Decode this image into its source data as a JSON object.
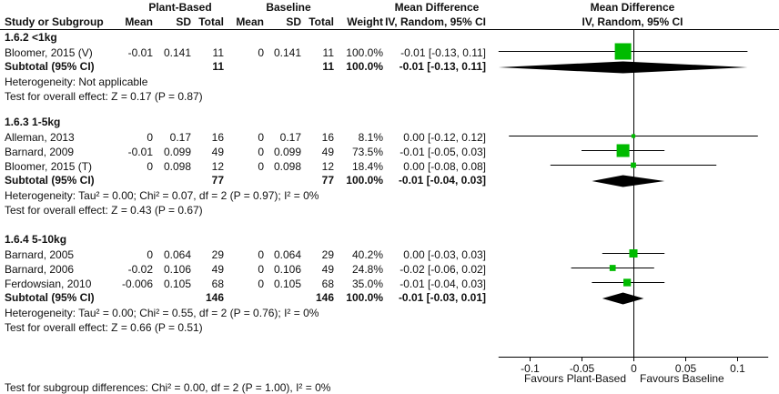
{
  "header": {
    "group_plant": "Plant-Based",
    "group_baseline": "Baseline",
    "md_table_title": "Mean Difference",
    "md_table_method": "IV, Random, 95% CI",
    "md_plot_title": "Mean Difference",
    "md_plot_method": "IV, Random, 95% CI",
    "study_col": "Study or Subgroup",
    "mean": "Mean",
    "sd": "SD",
    "total": "Total",
    "weight": "Weight"
  },
  "colors": {
    "square": "#00bb00",
    "diamond": "#000000",
    "lines": "#000000"
  },
  "chart_data": {
    "type": "forest",
    "xlim": [
      -0.13,
      0.13
    ],
    "ticks": [
      -0.1,
      -0.05,
      0,
      0.05,
      0.1
    ],
    "tick_labels": [
      "-0.1",
      "-0.05",
      "0",
      "0.05",
      "0.1"
    ],
    "favours_left": "Favours Plant-Based",
    "favours_right": "Favours Baseline",
    "subgroups": [
      {
        "label": "1.6.2 <1kg",
        "studies": [
          {
            "name": "Bloomer, 2015 (V)",
            "pb_mean": "-0.01",
            "pb_sd": "0.141",
            "pb_total": "11",
            "bl_mean": "0",
            "bl_sd": "0.141",
            "bl_total": "11",
            "weight": "100.0%",
            "ci_text": "-0.01 [-0.13, 0.11]",
            "md": -0.01,
            "lo": -0.13,
            "hi": 0.11,
            "w": 100.0
          }
        ],
        "subtotal": {
          "label": "Subtotal (95% CI)",
          "pb_total": "11",
          "bl_total": "11",
          "weight": "100.0%",
          "ci_text": "-0.01 [-0.13, 0.11]",
          "md": -0.01,
          "lo": -0.13,
          "hi": 0.11
        },
        "heterogeneity": "Heterogeneity: Not applicable",
        "overall_effect": "Test for overall effect: Z = 0.17 (P = 0.87)"
      },
      {
        "label": "1.6.3 1-5kg",
        "studies": [
          {
            "name": "Alleman, 2013",
            "pb_mean": "0",
            "pb_sd": "0.17",
            "pb_total": "16",
            "bl_mean": "0",
            "bl_sd": "0.17",
            "bl_total": "16",
            "weight": "8.1%",
            "ci_text": "0.00 [-0.12, 0.12]",
            "md": 0.0,
            "lo": -0.12,
            "hi": 0.12,
            "w": 8.1
          },
          {
            "name": "Barnard, 2009",
            "pb_mean": "-0.01",
            "pb_sd": "0.099",
            "pb_total": "49",
            "bl_mean": "0",
            "bl_sd": "0.099",
            "bl_total": "49",
            "weight": "73.5%",
            "ci_text": "-0.01 [-0.05, 0.03]",
            "md": -0.01,
            "lo": -0.05,
            "hi": 0.03,
            "w": 73.5
          },
          {
            "name": "Bloomer, 2015 (T)",
            "pb_mean": "0",
            "pb_sd": "0.098",
            "pb_total": "12",
            "bl_mean": "0",
            "bl_sd": "0.098",
            "bl_total": "12",
            "weight": "18.4%",
            "ci_text": "0.00 [-0.08, 0.08]",
            "md": 0.0,
            "lo": -0.08,
            "hi": 0.08,
            "w": 18.4
          }
        ],
        "subtotal": {
          "label": "Subtotal (95% CI)",
          "pb_total": "77",
          "bl_total": "77",
          "weight": "100.0%",
          "ci_text": "-0.01 [-0.04, 0.03]",
          "md": -0.01,
          "lo": -0.04,
          "hi": 0.03
        },
        "heterogeneity": "Heterogeneity: Tau² = 0.00; Chi² = 0.07, df = 2 (P = 0.97); I² = 0%",
        "overall_effect": "Test for overall effect: Z = 0.43 (P = 0.67)"
      },
      {
        "label": "1.6.4 5-10kg",
        "studies": [
          {
            "name": "Barnard, 2005",
            "pb_mean": "0",
            "pb_sd": "0.064",
            "pb_total": "29",
            "bl_mean": "0",
            "bl_sd": "0.064",
            "bl_total": "29",
            "weight": "40.2%",
            "ci_text": "0.00 [-0.03, 0.03]",
            "md": 0.0,
            "lo": -0.03,
            "hi": 0.03,
            "w": 40.2
          },
          {
            "name": "Barnard, 2006",
            "pb_mean": "-0.02",
            "pb_sd": "0.106",
            "pb_total": "49",
            "bl_mean": "0",
            "bl_sd": "0.106",
            "bl_total": "49",
            "weight": "24.8%",
            "ci_text": "-0.02 [-0.06, 0.02]",
            "md": -0.02,
            "lo": -0.06,
            "hi": 0.02,
            "w": 24.8
          },
          {
            "name": "Ferdowsian, 2010",
            "pb_mean": "-0.006",
            "pb_sd": "0.105",
            "pb_total": "68",
            "bl_mean": "0",
            "bl_sd": "0.105",
            "bl_total": "68",
            "weight": "35.0%",
            "ci_text": "-0.01 [-0.04, 0.03]",
            "md": -0.006,
            "lo": -0.04,
            "hi": 0.03,
            "w": 35.0
          }
        ],
        "subtotal": {
          "label": "Subtotal (95% CI)",
          "pb_total": "146",
          "bl_total": "146",
          "weight": "100.0%",
          "ci_text": "-0.01 [-0.03, 0.01]",
          "md": -0.01,
          "lo": -0.03,
          "hi": 0.01
        },
        "heterogeneity": "Heterogeneity: Tau² = 0.00; Chi² = 0.55, df = 2 (P = 0.76); I² = 0%",
        "overall_effect": "Test for overall effect: Z = 0.66 (P = 0.51)"
      }
    ],
    "subgroup_differences": "Test for subgroup differences: Chi² = 0.00, df = 2 (P = 1.00), I² = 0%"
  }
}
